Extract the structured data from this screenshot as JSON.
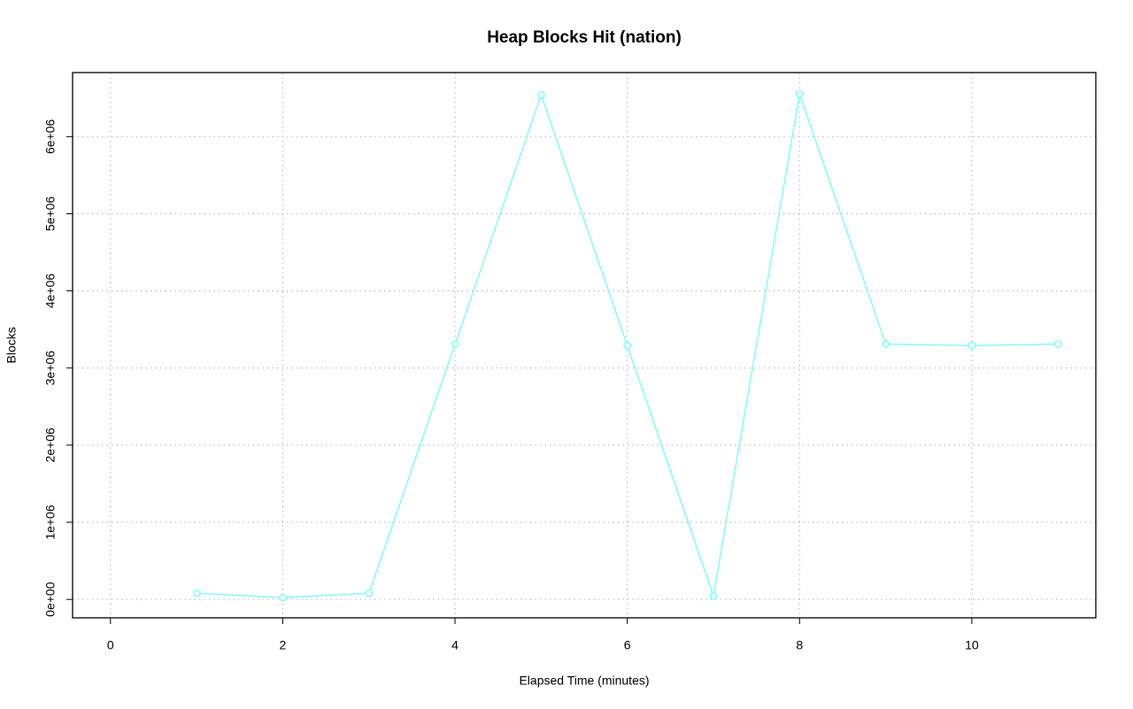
{
  "chart_data": {
    "type": "line",
    "title": "Heap Blocks Hit (nation)",
    "x_label": "Elapsed Time (minutes)",
    "y_label": "Blocks",
    "x": [
      1,
      2,
      3,
      4,
      5,
      6,
      7,
      8,
      9,
      10,
      11
    ],
    "series": [
      {
        "name": "Heap Blocks Hit",
        "color": "#7fffff",
        "values": [
          80000,
          23000,
          80000,
          3310000,
          6540000,
          3290000,
          46000,
          6550000,
          3310000,
          3290000,
          3310000
        ]
      }
    ],
    "xlim": [
      -0.44,
      11.44
    ],
    "xticks": [
      0,
      2,
      4,
      6,
      8,
      10
    ],
    "ylim": [
      -239000,
      6830000
    ],
    "yticks": [
      {
        "value": 0,
        "label": "0e+00"
      },
      {
        "value": 1000000,
        "label": "1e+06"
      },
      {
        "value": 2000000,
        "label": "2e+06"
      },
      {
        "value": 3000000,
        "label": "3e+06"
      },
      {
        "value": 4000000,
        "label": "4e+06"
      },
      {
        "value": 5000000,
        "label": "5e+06"
      },
      {
        "value": 6000000,
        "label": "6e+06"
      }
    ],
    "grid": true,
    "markers": true
  }
}
